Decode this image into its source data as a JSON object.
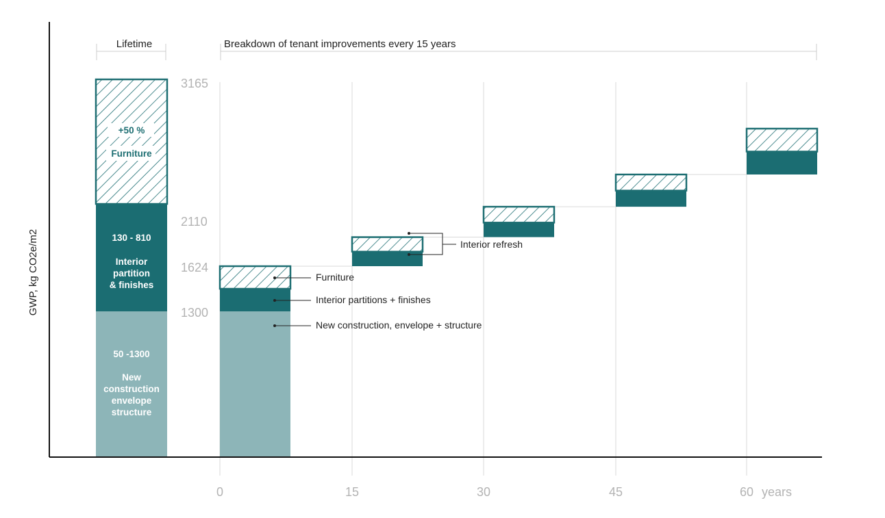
{
  "colors": {
    "furniture": "#1d6e72",
    "interior": "#1b6d72",
    "construction": "#8db5b8",
    "gridline": "#d9d9d9",
    "axis": "#111111",
    "tick_text": "#b3b3b3"
  },
  "icons": {
    "furniture_fill": "diagonal-hatch"
  },
  "headers": {
    "lifetime": "Lifetime",
    "breakdown": "Breakdown of tenant improvements every 15 years"
  },
  "lifetime_bar": {
    "segments": [
      {
        "title": "50 -1300",
        "lines": [
          "New",
          "construction",
          "envelope",
          "structure"
        ],
        "style": "construction"
      },
      {
        "title": "130 - 810",
        "lines": [
          "Interior",
          "partition",
          "& finishes"
        ],
        "style": "interior"
      },
      {
        "title": "+50 %",
        "lines": [
          "Furniture"
        ],
        "style": "furniture"
      }
    ]
  },
  "annotations": {
    "furniture": "Furniture",
    "interior": "Interior partitions + finishes",
    "construction": "New construction, envelope + structure",
    "refresh": "Interior refresh"
  },
  "chart_data": {
    "type": "bar",
    "title": "",
    "ylabel": "GWP, kg CO2e/m2",
    "xlabel": "years",
    "x_ticks": [
      "0",
      "15",
      "30",
      "45",
      "60"
    ],
    "y_ticks": [
      1300,
      1624,
      2110,
      3165
    ],
    "ylim": [
      0,
      3165
    ],
    "gridlines": "vertical at each x tick",
    "series": [
      {
        "name": "New construction, envelope + structure",
        "x": [
          0
        ],
        "base": [
          0
        ],
        "values": [
          1300
        ]
      },
      {
        "name": "Interior partitions + finishes",
        "x": [
          0,
          15,
          30,
          45,
          60
        ],
        "base": [
          1300,
          1624,
          1932,
          2240,
          2548
        ],
        "values": [
          162,
          154,
          154,
          154,
          154
        ]
      },
      {
        "name": "Furniture",
        "x": [
          0,
          15,
          30,
          45,
          60
        ],
        "base": [
          1462,
          1778,
          2086,
          2394,
          2702
        ],
        "values": [
          162,
          154,
          154,
          154,
          154
        ]
      }
    ],
    "lifetime": {
      "new_construction": [
        50,
        1300
      ],
      "interior_partition_finishes": [
        130,
        810
      ],
      "furniture": "+50 %"
    }
  }
}
